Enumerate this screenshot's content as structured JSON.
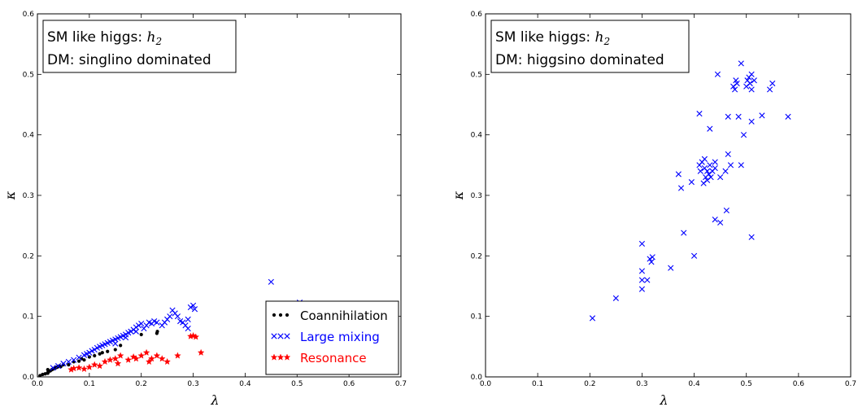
{
  "chart_data": [
    {
      "type": "scatter",
      "xlabel": "λ",
      "ylabel": "κ",
      "xlim": [
        0.0,
        0.7
      ],
      "ylim": [
        0.0,
        0.6
      ],
      "xticks": [
        "0.0",
        "0.1",
        "0.2",
        "0.3",
        "0.4",
        "0.5",
        "0.6",
        "0.7"
      ],
      "yticks": [
        "0.0",
        "0.1",
        "0.2",
        "0.3",
        "0.4",
        "0.5",
        "0.6"
      ],
      "annotation": {
        "line1_prefix": "SM like higgs: ",
        "line1_math": "h",
        "line1_sub": "2",
        "line2": "DM: singlino dominated"
      },
      "legend_position": "lower-right",
      "series": [
        {
          "name": "Coannihilation",
          "marker": "dot",
          "color": "#000000",
          "points": [
            [
              0.005,
              0.002
            ],
            [
              0.01,
              0.004
            ],
            [
              0.015,
              0.005
            ],
            [
              0.02,
              0.007
            ],
            [
              0.022,
              0.009
            ],
            [
              0.025,
              0.01
            ],
            [
              0.028,
              0.012
            ],
            [
              0.03,
              0.013
            ],
            [
              0.032,
              0.014
            ],
            [
              0.035,
              0.015
            ],
            [
              0.038,
              0.016
            ],
            [
              0.04,
              0.017
            ],
            [
              0.042,
              0.018
            ],
            [
              0.045,
              0.017
            ],
            [
              0.02,
              0.006
            ],
            [
              0.05,
              0.02
            ],
            [
              0.07,
              0.025
            ],
            [
              0.08,
              0.026
            ],
            [
              0.085,
              0.03
            ],
            [
              0.1,
              0.033
            ],
            [
              0.11,
              0.035
            ],
            [
              0.12,
              0.038
            ],
            [
              0.125,
              0.04
            ],
            [
              0.135,
              0.042
            ],
            [
              0.15,
              0.045
            ],
            [
              0.16,
              0.052
            ],
            [
              0.2,
              0.07
            ],
            [
              0.23,
              0.072
            ],
            [
              0.231,
              0.075
            ],
            [
              0.02,
              0.012
            ],
            [
              0.06,
              0.02
            ],
            [
              0.09,
              0.028
            ]
          ]
        },
        {
          "name": "Large mixing",
          "marker": "x",
          "color": "#0000ff",
          "points": [
            [
              0.03,
              0.015
            ],
            [
              0.04,
              0.018
            ],
            [
              0.05,
              0.022
            ],
            [
              0.06,
              0.025
            ],
            [
              0.07,
              0.028
            ],
            [
              0.08,
              0.032
            ],
            [
              0.09,
              0.036
            ],
            [
              0.095,
              0.038
            ],
            [
              0.1,
              0.04
            ],
            [
              0.105,
              0.043
            ],
            [
              0.11,
              0.045
            ],
            [
              0.115,
              0.048
            ],
            [
              0.12,
              0.05
            ],
            [
              0.125,
              0.052
            ],
            [
              0.13,
              0.054
            ],
            [
              0.135,
              0.056
            ],
            [
              0.14,
              0.058
            ],
            [
              0.145,
              0.06
            ],
            [
              0.15,
              0.062
            ],
            [
              0.155,
              0.064
            ],
            [
              0.16,
              0.066
            ],
            [
              0.165,
              0.068
            ],
            [
              0.17,
              0.07
            ],
            [
              0.175,
              0.073
            ],
            [
              0.18,
              0.075
            ],
            [
              0.185,
              0.078
            ],
            [
              0.19,
              0.082
            ],
            [
              0.195,
              0.085
            ],
            [
              0.2,
              0.088
            ],
            [
              0.205,
              0.08
            ],
            [
              0.21,
              0.085
            ],
            [
              0.215,
              0.09
            ],
            [
              0.22,
              0.088
            ],
            [
              0.225,
              0.092
            ],
            [
              0.23,
              0.09
            ],
            [
              0.24,
              0.085
            ],
            [
              0.245,
              0.09
            ],
            [
              0.25,
              0.095
            ],
            [
              0.255,
              0.1
            ],
            [
              0.26,
              0.11
            ],
            [
              0.265,
              0.105
            ],
            [
              0.27,
              0.1
            ],
            [
              0.275,
              0.092
            ],
            [
              0.28,
              0.09
            ],
            [
              0.285,
              0.085
            ],
            [
              0.29,
              0.095
            ],
            [
              0.295,
              0.115
            ],
            [
              0.3,
              0.118
            ],
            [
              0.303,
              0.112
            ],
            [
              0.29,
              0.08
            ],
            [
              0.45,
              0.157
            ],
            [
              0.505,
              0.123
            ],
            [
              0.15,
              0.055
            ],
            [
              0.17,
              0.065
            ],
            [
              0.19,
              0.075
            ]
          ]
        },
        {
          "name": "Resonance",
          "marker": "star",
          "color": "#ff0000",
          "points": [
            [
              0.065,
              0.012
            ],
            [
              0.07,
              0.014
            ],
            [
              0.08,
              0.015
            ],
            [
              0.09,
              0.013
            ],
            [
              0.1,
              0.016
            ],
            [
              0.11,
              0.02
            ],
            [
              0.12,
              0.018
            ],
            [
              0.13,
              0.025
            ],
            [
              0.14,
              0.028
            ],
            [
              0.15,
              0.03
            ],
            [
              0.16,
              0.035
            ],
            [
              0.155,
              0.022
            ],
            [
              0.19,
              0.03
            ],
            [
              0.2,
              0.035
            ],
            [
              0.21,
              0.04
            ],
            [
              0.215,
              0.025
            ],
            [
              0.22,
              0.03
            ],
            [
              0.23,
              0.035
            ],
            [
              0.24,
              0.03
            ],
            [
              0.25,
              0.025
            ],
            [
              0.27,
              0.035
            ],
            [
              0.295,
              0.067
            ],
            [
              0.3,
              0.068
            ],
            [
              0.305,
              0.066
            ],
            [
              0.315,
              0.04
            ],
            [
              0.175,
              0.028
            ],
            [
              0.185,
              0.033
            ]
          ]
        }
      ]
    },
    {
      "type": "scatter",
      "xlabel": "λ",
      "ylabel": "κ",
      "xlim": [
        0.0,
        0.7
      ],
      "ylim": [
        0.0,
        0.6
      ],
      "xticks": [
        "0.0",
        "0.1",
        "0.2",
        "0.3",
        "0.4",
        "0.5",
        "0.6",
        "0.7"
      ],
      "yticks": [
        "0.0",
        "0.1",
        "0.2",
        "0.3",
        "0.4",
        "0.5",
        "0.6"
      ],
      "annotation": {
        "line1_prefix": "SM like higgs: ",
        "line1_math": "h",
        "line1_sub": "2",
        "line2": "DM: higgsino dominated"
      },
      "series": [
        {
          "marker": "x",
          "color": "#0000ff",
          "points": [
            [
              0.205,
              0.097
            ],
            [
              0.25,
              0.13
            ],
            [
              0.3,
              0.145
            ],
            [
              0.3,
              0.16
            ],
            [
              0.3,
              0.175
            ],
            [
              0.3,
              0.22
            ],
            [
              0.31,
              0.16
            ],
            [
              0.315,
              0.195
            ],
            [
              0.32,
              0.198
            ],
            [
              0.318,
              0.19
            ],
            [
              0.355,
              0.18
            ],
            [
              0.37,
              0.335
            ],
            [
              0.375,
              0.312
            ],
            [
              0.38,
              0.238
            ],
            [
              0.395,
              0.322
            ],
            [
              0.4,
              0.2
            ],
            [
              0.41,
              0.435
            ],
            [
              0.41,
              0.35
            ],
            [
              0.412,
              0.34
            ],
            [
              0.415,
              0.355
            ],
            [
              0.418,
              0.32
            ],
            [
              0.42,
              0.345
            ],
            [
              0.42,
              0.36
            ],
            [
              0.422,
              0.33
            ],
            [
              0.425,
              0.34
            ],
            [
              0.428,
              0.335
            ],
            [
              0.43,
              0.41
            ],
            [
              0.43,
              0.35
            ],
            [
              0.432,
              0.33
            ],
            [
              0.435,
              0.34
            ],
            [
              0.44,
              0.345
            ],
            [
              0.44,
              0.26
            ],
            [
              0.445,
              0.5
            ],
            [
              0.45,
              0.255
            ],
            [
              0.45,
              0.33
            ],
            [
              0.46,
              0.34
            ],
            [
              0.462,
              0.275
            ],
            [
              0.465,
              0.43
            ],
            [
              0.465,
              0.368
            ],
            [
              0.47,
              0.35
            ],
            [
              0.475,
              0.48
            ],
            [
              0.478,
              0.475
            ],
            [
              0.48,
              0.49
            ],
            [
              0.482,
              0.485
            ],
            [
              0.485,
              0.43
            ],
            [
              0.49,
              0.35
            ],
            [
              0.49,
              0.518
            ],
            [
              0.495,
              0.4
            ],
            [
              0.5,
              0.48
            ],
            [
              0.502,
              0.49
            ],
            [
              0.505,
              0.495
            ],
            [
              0.507,
              0.485
            ],
            [
              0.51,
              0.5
            ],
            [
              0.51,
              0.475
            ],
            [
              0.51,
              0.231
            ],
            [
              0.51,
              0.422
            ],
            [
              0.515,
              0.49
            ],
            [
              0.53,
              0.432
            ],
            [
              0.545,
              0.475
            ],
            [
              0.55,
              0.485
            ],
            [
              0.58,
              0.43
            ],
            [
              0.44,
              0.355
            ],
            [
              0.425,
              0.325
            ]
          ]
        }
      ]
    }
  ]
}
